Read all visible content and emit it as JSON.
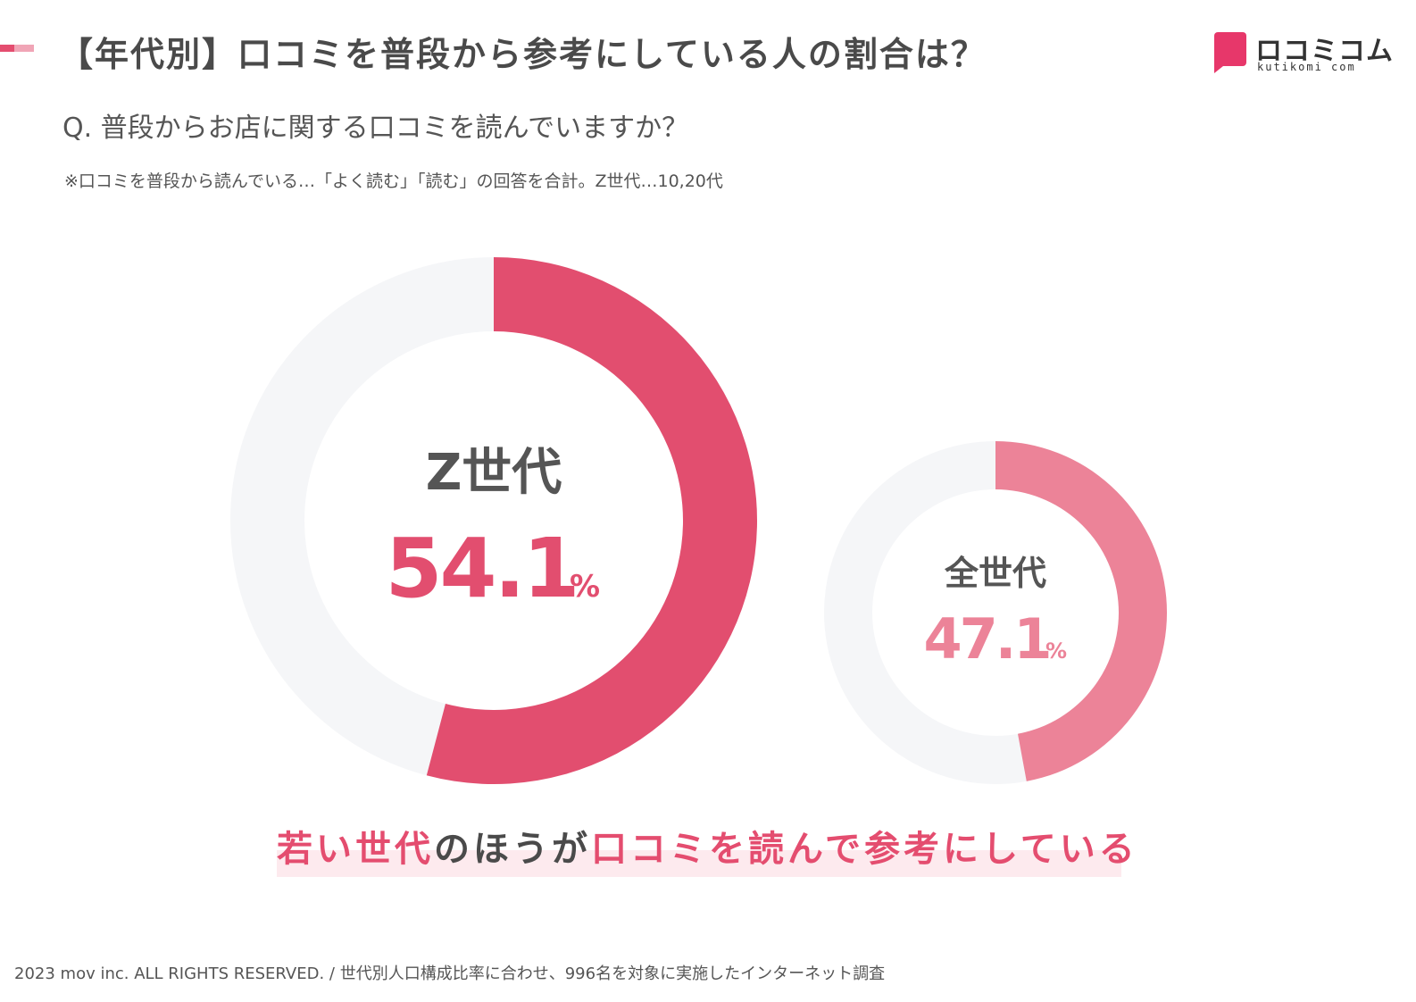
{
  "header": {
    "title": "【年代別】口コミを普段から参考にしている人の割合は？",
    "logo_text": "ロコミコム",
    "logo_sub": "kutikomi com"
  },
  "question": "Q. 普段からお店に関する口コミを読んでいますか？",
  "note": "※口コミを普段から読んでいる…「よく読む」「読む」の回答を合計。Z世代…10,20代",
  "headline": {
    "part1": "若い世代",
    "part2": "のほうが",
    "part3": "口コミを読んで参考にしている"
  },
  "footer": "2023 mov inc. ALL RIGHTS RESERVED. / 世代別人口構成比率に合わせ、996名を対象に実施したインターネット調査",
  "colors": {
    "primary": "#e24e6f",
    "secondary": "#ec8398",
    "track": "#f5f6f8",
    "accent_text": "#e44d6f"
  },
  "chart_data": [
    {
      "type": "pie",
      "label": "Z世代",
      "value": 54.1,
      "unit": "%",
      "color": "#e24e6f"
    },
    {
      "type": "pie",
      "label": "全世代",
      "value": 47.1,
      "unit": "%",
      "color": "#ec8398"
    }
  ]
}
